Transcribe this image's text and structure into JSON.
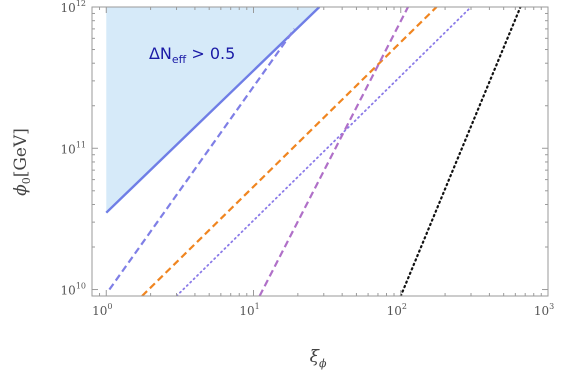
{
  "chart_data": {
    "type": "line",
    "xscale": "log",
    "yscale": "log",
    "xlim": [
      0.8,
      1000
    ],
    "ylim": [
      9000000000,
      1000000000000
    ],
    "xlabel_symbol": "ξ",
    "xlabel_sub": "ϕ",
    "ylabel_symbol": "ϕ",
    "ylabel_sub": "0",
    "ylabel_unit": "[GeV]",
    "x_ticks": [
      {
        "base": "10",
        "exp": "0",
        "value": 1
      },
      {
        "base": "10",
        "exp": "1",
        "value": 10
      },
      {
        "base": "10",
        "exp": "2",
        "value": 100
      },
      {
        "base": "10",
        "exp": "3",
        "value": 1000
      }
    ],
    "y_ticks": [
      {
        "base": "10",
        "exp": "10",
        "value": 10000000000
      },
      {
        "base": "10",
        "exp": "11",
        "value": 100000000000
      },
      {
        "base": "10",
        "exp": "12",
        "value": 1000000000000
      }
    ],
    "shaded_region": {
      "vertices": [
        [
          1.0,
          35000000000
        ],
        [
          28,
          1000000000000
        ],
        [
          1.0,
          1000000000000
        ]
      ],
      "color": "#d6eaf9",
      "label": {
        "main": "ΔN",
        "sub": "eff",
        "rest": " > 0.5",
        "x": 1.95,
        "y": 430000000000,
        "color": "#1a1aa6"
      }
    },
    "series": [
      {
        "style": "solid",
        "color": "#6f7ee6",
        "width": 2.4,
        "points": [
          [
            1.0,
            35000000000
          ],
          [
            28,
            1000000000000
          ]
        ]
      },
      {
        "style": "dashed",
        "color": "#7f7fe6",
        "width": 2.2,
        "points": [
          [
            1.05,
            10000000000
          ],
          [
            19,
            700000000000
          ]
        ]
      },
      {
        "style": "dashed",
        "color": "#f08520",
        "width": 2.2,
        "points": [
          [
            1.75,
            9000000000
          ],
          [
            175,
            1000000000000
          ]
        ]
      },
      {
        "style": "dotted",
        "color": "#8a7ae8",
        "width": 1.8,
        "points": [
          [
            3.0,
            9000000000
          ],
          [
            300,
            1000000000000
          ]
        ]
      },
      {
        "style": "dashed",
        "color": "#b070c8",
        "width": 2.2,
        "points": [
          [
            11.0,
            9000000000
          ],
          [
            112,
            1000000000000
          ]
        ]
      },
      {
        "style": "dotted",
        "color": "#111111",
        "width": 2.2,
        "points": [
          [
            100,
            9000000000
          ],
          [
            650,
            1000000000000
          ]
        ]
      }
    ]
  }
}
